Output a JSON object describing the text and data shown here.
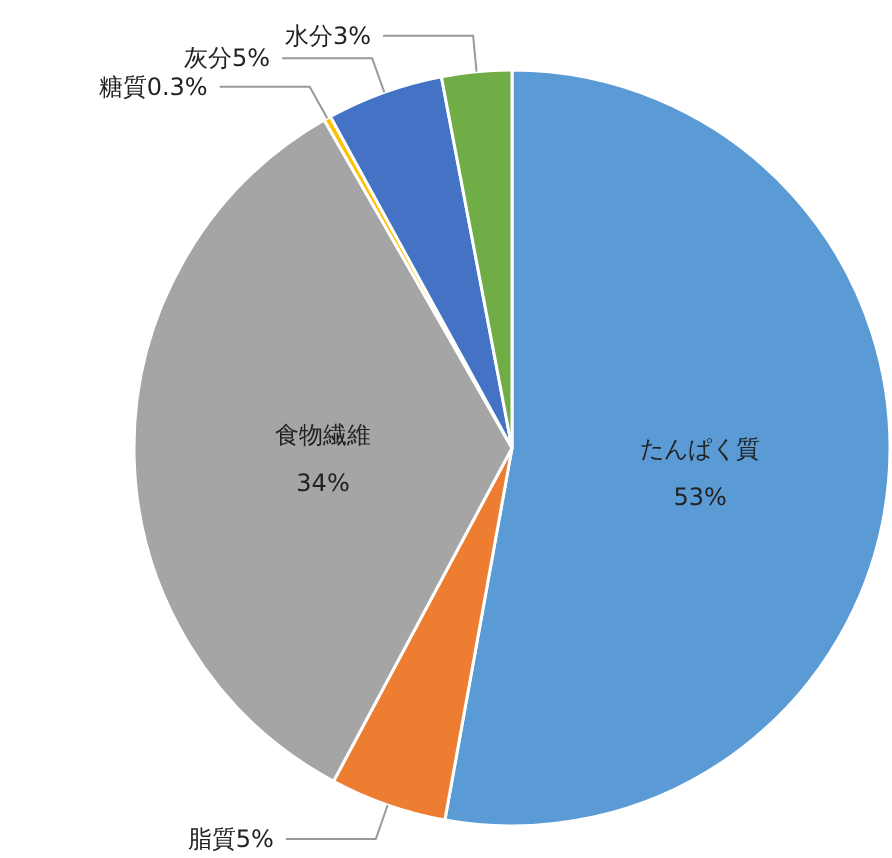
{
  "chart_data": {
    "type": "pie",
    "categories": [
      "たんぱく質",
      "脂質",
      "食物繊維",
      "糖質",
      "灰分",
      "水分"
    ],
    "values": [
      53,
      5,
      34,
      0.3,
      5,
      3
    ],
    "value_labels": [
      "53%",
      "5%",
      "34%",
      "0.3%",
      "5%",
      "3%"
    ],
    "colors": [
      "#5b9bd5",
      "#ed7d31",
      "#a5a5a5",
      "#ffc000",
      "#4472c4",
      "#70ad47"
    ],
    "legend": false
  }
}
